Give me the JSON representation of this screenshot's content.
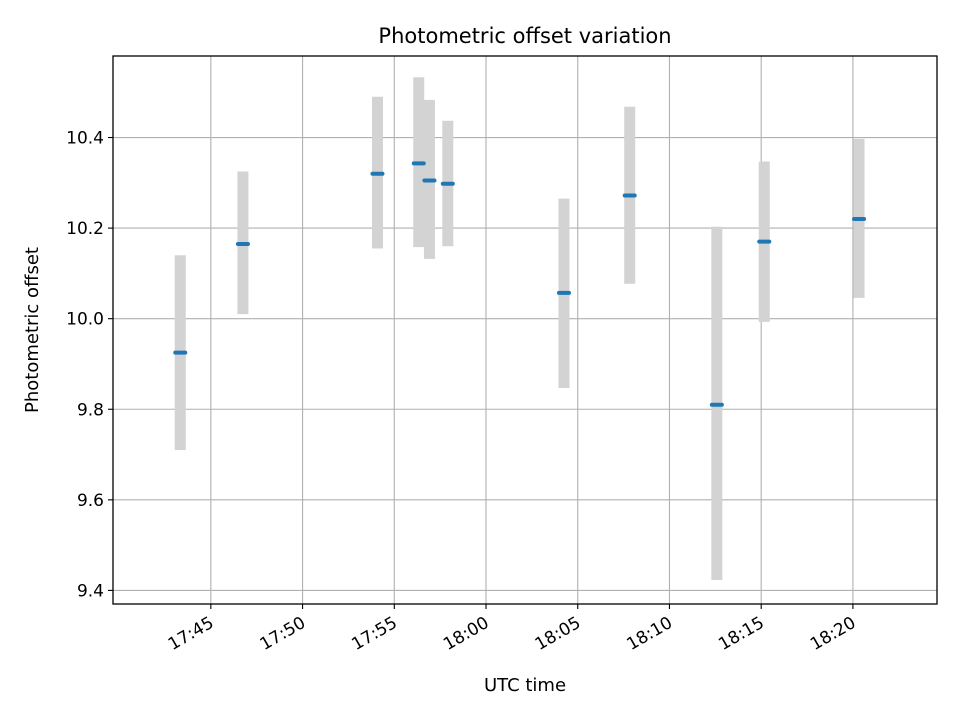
{
  "chart_data": {
    "type": "scatter",
    "title": "Photometric offset variation",
    "xlabel": "UTC time",
    "ylabel": "Photometric offset",
    "x_tick_labels": [
      "17:45",
      "17:50",
      "17:55",
      "18:00",
      "18:05",
      "18:10",
      "18:15",
      "18:20"
    ],
    "y_tick_labels": [
      "9.4",
      "9.6",
      "9.8",
      "10.0",
      "10.2",
      "10.4"
    ],
    "ylim": [
      9.37,
      10.58
    ],
    "grid": true,
    "errorbar_color": "#d3d3d3",
    "marker_color": "#1f77b4",
    "points": [
      {
        "t": "17:43:20",
        "y": 9.925,
        "lo": 9.71,
        "hi": 10.14
      },
      {
        "t": "17:46:45",
        "y": 10.165,
        "lo": 10.01,
        "hi": 10.325
      },
      {
        "t": "17:54:05",
        "y": 10.32,
        "lo": 10.155,
        "hi": 10.49
      },
      {
        "t": "17:56:20",
        "y": 10.343,
        "lo": 10.158,
        "hi": 10.533
      },
      {
        "t": "17:56:55",
        "y": 10.305,
        "lo": 10.132,
        "hi": 10.483
      },
      {
        "t": "17:57:55",
        "y": 10.298,
        "lo": 10.16,
        "hi": 10.437
      },
      {
        "t": "18:04:15",
        "y": 10.057,
        "lo": 9.847,
        "hi": 10.265
      },
      {
        "t": "18:07:50",
        "y": 10.272,
        "lo": 10.077,
        "hi": 10.468
      },
      {
        "t": "18:12:35",
        "y": 9.81,
        "lo": 9.423,
        "hi": 10.203
      },
      {
        "t": "18:15:10",
        "y": 10.17,
        "lo": 9.993,
        "hi": 10.347
      },
      {
        "t": "18:20:20",
        "y": 10.22,
        "lo": 10.046,
        "hi": 10.397
      }
    ]
  }
}
